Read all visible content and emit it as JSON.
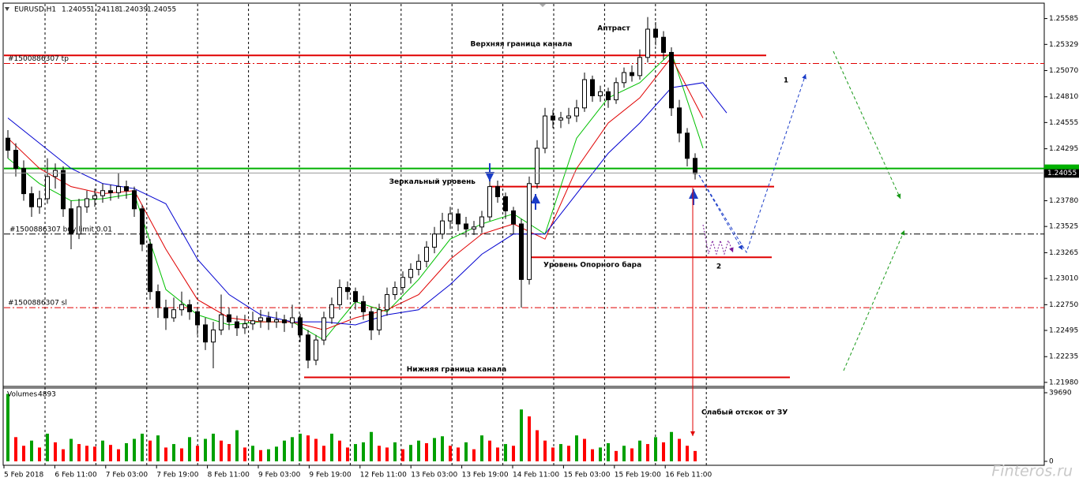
{
  "chart_data": {
    "type": "candlestick",
    "title": "EURUSD,H1",
    "quote": [
      1.24055,
      1.24118,
      1.24039,
      1.24055
    ],
    "categories": [
      "5 Feb 2018",
      "6 Feb 11:00",
      "7 Feb 03:00",
      "7 Feb 19:00",
      "8 Feb 11:00",
      "9 Feb 03:00",
      "9 Feb 19:00",
      "12 Feb 11:00",
      "13 Feb 03:00",
      "13 Feb 19:00",
      "14 Feb 11:00",
      "15 Feb 03:00",
      "15 Feb 19:00",
      "16 Feb 11:00"
    ],
    "ylim": [
      1.2194,
      1.2573
    ],
    "yticks": [
      1.25585,
      1.25329,
      {
        "value": 1.2507,
        "label": "1.25070"
      },
      {
        "value": 1.2481,
        "label": "1.24810"
      },
      1.24555,
      1.24295,
      {
        "value": 1.2378,
        "label": "1.23780"
      },
      1.23525,
      1.23265,
      {
        "value": 1.2301,
        "label": "1.23010"
      },
      {
        "value": 1.2275,
        "label": "1.22750"
      },
      1.22495,
      1.22235,
      {
        "value": 1.2198,
        "label": "1.21980"
      }
    ],
    "current_price": 1.24055,
    "candle_color": "#000000",
    "candles": [
      [
        1.244,
        1.2448,
        1.242,
        1.2428
      ],
      [
        1.2428,
        1.2435,
        1.2402,
        1.241
      ],
      [
        1.241,
        1.2418,
        1.2378,
        1.2385
      ],
      [
        1.2385,
        1.2392,
        1.2362,
        1.2372
      ],
      [
        1.2372,
        1.2388,
        1.2365,
        1.238
      ],
      [
        1.238,
        1.242,
        1.2375,
        1.2402
      ],
      [
        1.2402,
        1.2415,
        1.239,
        1.2408
      ],
      [
        1.2408,
        1.2412,
        1.2362,
        1.237
      ],
      [
        1.237,
        1.2378,
        1.233,
        1.2345
      ],
      [
        1.2345,
        1.238,
        1.234,
        1.2372
      ],
      [
        1.2372,
        1.2388,
        1.2366,
        1.238
      ],
      [
        1.238,
        1.239,
        1.2372,
        1.2383
      ],
      [
        1.2383,
        1.2395,
        1.2376,
        1.2388
      ],
      [
        1.2388,
        1.2394,
        1.2378,
        1.2386
      ],
      [
        1.2386,
        1.2405,
        1.238,
        1.2392
      ],
      [
        1.2392,
        1.2398,
        1.238,
        1.2388
      ],
      [
        1.2388,
        1.2392,
        1.2362,
        1.237
      ],
      [
        1.237,
        1.2374,
        1.2328,
        1.2335
      ],
      [
        1.2335,
        1.234,
        1.228,
        1.2288
      ],
      [
        1.2288,
        1.2295,
        1.2262,
        1.2272
      ],
      [
        1.2272,
        1.228,
        1.225,
        1.2262
      ],
      [
        1.2262,
        1.2282,
        1.2258,
        1.227
      ],
      [
        1.227,
        1.2288,
        1.2264,
        1.2275
      ],
      [
        1.2275,
        1.228,
        1.226,
        1.2268
      ],
      [
        1.2268,
        1.2272,
        1.2245,
        1.2255
      ],
      [
        1.2255,
        1.2262,
        1.223,
        1.2238
      ],
      [
        1.2238,
        1.2258,
        1.2212,
        1.225
      ],
      [
        1.225,
        1.2285,
        1.2245,
        1.2265
      ],
      [
        1.2265,
        1.2272,
        1.225,
        1.2258
      ],
      [
        1.2258,
        1.2264,
        1.2244,
        1.2252
      ],
      [
        1.2252,
        1.2265,
        1.2246,
        1.2256
      ],
      [
        1.2256,
        1.2268,
        1.225,
        1.2259
      ],
      [
        1.2259,
        1.227,
        1.2252,
        1.2262
      ],
      [
        1.2262,
        1.2268,
        1.225,
        1.2258
      ],
      [
        1.2258,
        1.2268,
        1.2252,
        1.226
      ],
      [
        1.226,
        1.2265,
        1.2248,
        1.2257
      ],
      [
        1.2257,
        1.2275,
        1.2252,
        1.2262
      ],
      [
        1.2262,
        1.2266,
        1.2238,
        1.2245
      ],
      [
        1.2245,
        1.225,
        1.2212,
        1.222
      ],
      [
        1.222,
        1.2245,
        1.2215,
        1.224
      ],
      [
        1.224,
        1.2268,
        1.2235,
        1.2262
      ],
      [
        1.2262,
        1.2282,
        1.2256,
        1.2275
      ],
      [
        1.2275,
        1.23,
        1.227,
        1.2292
      ],
      [
        1.2292,
        1.2298,
        1.228,
        1.2288
      ],
      [
        1.2288,
        1.2292,
        1.227,
        1.2278
      ],
      [
        1.2278,
        1.2284,
        1.226,
        1.2268
      ],
      [
        1.2268,
        1.2272,
        1.224,
        1.225
      ],
      [
        1.225,
        1.2276,
        1.2245,
        1.227
      ],
      [
        1.227,
        1.2292,
        1.2264,
        1.2285
      ],
      [
        1.2285,
        1.2298,
        1.228,
        1.2292
      ],
      [
        1.2292,
        1.2308,
        1.2286,
        1.2302
      ],
      [
        1.2302,
        1.2316,
        1.2296,
        1.231
      ],
      [
        1.231,
        1.2325,
        1.2304,
        1.2318
      ],
      [
        1.2318,
        1.2338,
        1.2312,
        1.2332
      ],
      [
        1.2332,
        1.2352,
        1.2326,
        1.2345
      ],
      [
        1.2345,
        1.2366,
        1.234,
        1.2358
      ],
      [
        1.2358,
        1.2372,
        1.235,
        1.2365
      ],
      [
        1.2365,
        1.237,
        1.2348,
        1.2355
      ],
      [
        1.2355,
        1.2362,
        1.2342,
        1.235
      ],
      [
        1.235,
        1.2358,
        1.2344,
        1.2352
      ],
      [
        1.2352,
        1.2368,
        1.2346,
        1.2362
      ],
      [
        1.2362,
        1.24,
        1.2358,
        1.2392
      ],
      [
        1.2392,
        1.2398,
        1.2376,
        1.2382
      ],
      [
        1.2382,
        1.2386,
        1.236,
        1.2368
      ],
      [
        1.2368,
        1.2372,
        1.2345,
        1.2355
      ],
      [
        1.2355,
        1.236,
        1.2272,
        1.23
      ],
      [
        1.23,
        1.2402,
        1.2295,
        1.2395
      ],
      [
        1.2395,
        1.2438,
        1.239,
        1.243
      ],
      [
        1.243,
        1.247,
        1.2425,
        1.2462
      ],
      [
        1.2462,
        1.2468,
        1.245,
        1.2458
      ],
      [
        1.2458,
        1.2466,
        1.245,
        1.246
      ],
      [
        1.246,
        1.247,
        1.2454,
        1.2462
      ],
      [
        1.2462,
        1.2478,
        1.2456,
        1.247
      ],
      [
        1.247,
        1.2505,
        1.2466,
        1.2498
      ],
      [
        1.2498,
        1.2502,
        1.2476,
        1.2482
      ],
      [
        1.2482,
        1.2492,
        1.2476,
        1.2486
      ],
      [
        1.2486,
        1.249,
        1.247,
        1.2478
      ],
      [
        1.2478,
        1.25,
        1.2474,
        1.2495
      ],
      [
        1.2495,
        1.251,
        1.249,
        1.2505
      ],
      [
        1.2505,
        1.2512,
        1.2496,
        1.2502
      ],
      [
        1.2502,
        1.2528,
        1.2498,
        1.252
      ],
      [
        1.252,
        1.256,
        1.2515,
        1.2548
      ],
      [
        1.2548,
        1.2555,
        1.2532,
        1.254
      ],
      [
        1.254,
        1.2546,
        1.2518,
        1.2525
      ],
      [
        1.2525,
        1.253,
        1.2462,
        1.247
      ],
      [
        1.247,
        1.2478,
        1.2436,
        1.2445
      ],
      [
        1.2445,
        1.245,
        1.2412,
        1.242
      ],
      [
        1.242,
        1.2425,
        1.2399,
        1.2405
      ]
    ],
    "moving_averages": [
      {
        "color": "#00c000",
        "x": [
          0,
          4,
          8,
          12,
          16,
          20,
          24,
          28,
          32,
          36,
          40,
          44,
          48,
          52,
          56,
          60,
          64,
          68,
          72,
          76,
          80,
          84,
          88
        ],
        "values": [
          1.242,
          1.2395,
          1.2378,
          1.238,
          1.2385,
          1.229,
          1.2265,
          1.2255,
          1.2258,
          1.2258,
          1.224,
          1.2278,
          1.2268,
          1.23,
          1.234,
          1.2355,
          1.2365,
          1.2345,
          1.244,
          1.248,
          1.2495,
          1.2525,
          1.243
        ]
      },
      {
        "color": "#e00000",
        "x": [
          0,
          4,
          8,
          12,
          16,
          20,
          24,
          28,
          32,
          36,
          40,
          44,
          48,
          52,
          56,
          60,
          64,
          68,
          72,
          76,
          80,
          84,
          88
        ],
        "values": [
          1.244,
          1.241,
          1.2392,
          1.2385,
          1.2388,
          1.233,
          1.228,
          1.2262,
          1.2258,
          1.2258,
          1.225,
          1.2262,
          1.227,
          1.2285,
          1.232,
          1.2345,
          1.2355,
          1.234,
          1.241,
          1.2455,
          1.248,
          1.252,
          1.246
        ]
      },
      {
        "color": "#0000d0",
        "x": [
          0,
          4,
          8,
          12,
          16,
          20,
          24,
          28,
          32,
          36,
          40,
          44,
          48,
          52,
          56,
          60,
          64,
          68,
          72,
          76,
          80,
          84,
          88,
          91
        ],
        "values": [
          1.246,
          1.2435,
          1.241,
          1.2395,
          1.239,
          1.2375,
          1.232,
          1.2285,
          1.2265,
          1.2258,
          1.2258,
          1.2255,
          1.2265,
          1.227,
          1.2295,
          1.2325,
          1.2345,
          1.2345,
          1.2385,
          1.2425,
          1.2455,
          1.249,
          1.2495,
          1.2465
        ]
      }
    ],
    "levels": [
      {
        "value": 1.2522,
        "color": "#e00000",
        "style": "solid",
        "label": "Верхняя граница канала"
      },
      {
        "value": 1.2514,
        "color": "#e00000",
        "style": "dashdot",
        "label": "#1500886307 tp"
      },
      {
        "value": 1.241,
        "color": "#00b000",
        "style": "solid"
      },
      {
        "value": 1.2392,
        "color": "#e00000",
        "style": "solid",
        "label": "Зеркальный уровень"
      },
      {
        "value": 1.2345,
        "color": "#000000",
        "style": "dashdot",
        "label": "#1500886307 buy limit 0.01"
      },
      {
        "value": 1.2322,
        "color": "#e00000",
        "style": "solid",
        "label": "Уровень Опорного бара"
      },
      {
        "value": 1.2272,
        "color": "#e00000",
        "style": "dashdot",
        "label": "#1500886307 sl"
      },
      {
        "value": 1.2203,
        "color": "#e00000",
        "style": "solid",
        "label": "Нижняя граница канала"
      }
    ],
    "annotations": [
      "Аптраст",
      "1",
      "2",
      "Слабый отскок от ЗУ"
    ],
    "volume": {
      "title": "Volumes",
      "total": 4893,
      "up_color": "#00a000",
      "down_color": "#ff0000",
      "ylim": [
        0,
        39690
      ],
      "yticks": [
        39690,
        0
      ],
      "values": [
        39000,
        14000,
        9000,
        12000,
        8000,
        16000,
        11000,
        7000,
        13000,
        10000,
        9000,
        8500,
        12000,
        9500,
        7000,
        10500,
        13000,
        16000,
        12000,
        15000,
        8000,
        10000,
        7500,
        14000,
        9000,
        13000,
        16000,
        12000,
        10000,
        18000,
        8000,
        9000,
        6500,
        7000,
        8500,
        12000,
        14000,
        16000,
        15000,
        13000,
        9000,
        16000,
        12000,
        8000,
        10000,
        11000,
        17000,
        9000,
        8000,
        11000,
        7000,
        9500,
        12000,
        10500,
        13500,
        14500,
        9000,
        8000,
        11000,
        7000,
        15000,
        12000,
        8000,
        10000,
        9000,
        30000,
        26000,
        18000,
        12000,
        8000,
        10000,
        9000,
        15000,
        13000,
        7000,
        8000,
        10500,
        6000,
        9000,
        7500,
        12000,
        10000,
        14000,
        11000,
        17000,
        13000,
        9000,
        6000
      ]
    },
    "watermark": "Finteros.ru"
  }
}
